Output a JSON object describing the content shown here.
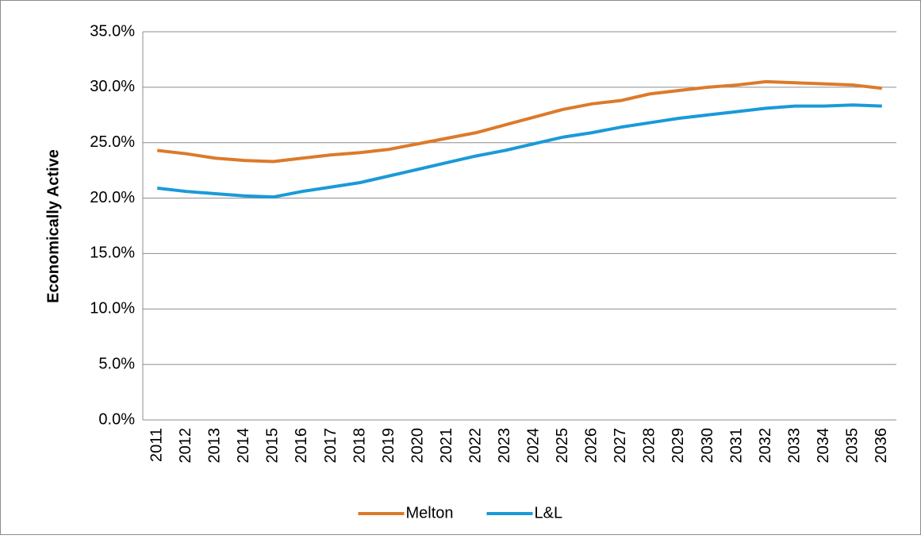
{
  "chart_data": {
    "type": "line",
    "y_label": "Economically Active",
    "categories": [
      "2011",
      "2012",
      "2013",
      "2014",
      "2015",
      "2016",
      "2017",
      "2018",
      "2019",
      "2020",
      "2021",
      "2022",
      "2023",
      "2024",
      "2025",
      "2026",
      "2027",
      "2028",
      "2029",
      "2030",
      "2031",
      "2032",
      "2033",
      "2034",
      "2035",
      "2036"
    ],
    "series": [
      {
        "name": "Melton",
        "color": "#dc7a2a",
        "values": [
          24.3,
          24.0,
          23.6,
          23.4,
          23.3,
          23.6,
          23.9,
          24.1,
          24.4,
          24.9,
          25.4,
          25.9,
          26.6,
          27.3,
          28.0,
          28.5,
          28.8,
          29.4,
          29.7,
          30.0,
          30.2,
          30.5,
          30.4,
          30.3,
          30.2,
          29.9
        ]
      },
      {
        "name": "L&L",
        "color": "#1a9ad8",
        "values": [
          20.9,
          20.6,
          20.4,
          20.2,
          20.1,
          20.6,
          21.0,
          21.4,
          22.0,
          22.6,
          23.2,
          23.8,
          24.3,
          24.9,
          25.5,
          25.9,
          26.4,
          26.8,
          27.2,
          27.5,
          27.8,
          28.1,
          28.3,
          28.3,
          28.4,
          28.3
        ]
      }
    ],
    "ylim": [
      0,
      35
    ],
    "yticks": [
      {
        "value": 0,
        "label": "0.0%"
      },
      {
        "value": 5,
        "label": "5.0%"
      },
      {
        "value": 10,
        "label": "10.0%"
      },
      {
        "value": 15,
        "label": "15.0%"
      },
      {
        "value": 20,
        "label": "20.0%"
      },
      {
        "value": 25,
        "label": "25.0%"
      },
      {
        "value": 30,
        "label": "30.0%"
      },
      {
        "value": 35,
        "label": "35.0%"
      }
    ],
    "grid": true,
    "legend": "bottom"
  }
}
